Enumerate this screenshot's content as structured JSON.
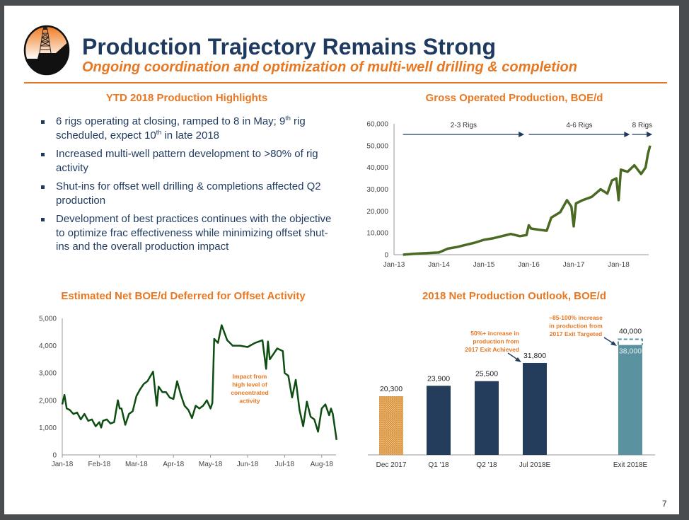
{
  "header": {
    "title": "Production Trajectory Remains Strong",
    "subtitle": "Ongoing coordination and optimization of multi-well drilling & completion",
    "logo_icon": "oil-derrick-logo-icon"
  },
  "colors": {
    "navy": "#1f3a5f",
    "orange": "#e87722",
    "green_line": "#4a6a23",
    "dark_green_line": "#0d4d12",
    "bar_navy": "#243d5c",
    "bar_teal": "#5a939f",
    "bar_hatch": "#d78a2a"
  },
  "highlights": {
    "title": "YTD 2018 Production Highlights",
    "items": [
      {
        "parts": [
          "6 rigs operating at closing, ramped to 8 in May; 9",
          "th",
          " rig scheduled, expect 10",
          "th",
          " in late 2018"
        ]
      },
      {
        "text": "Increased multi-well pattern development to >80% of rig activity"
      },
      {
        "text": "Shut-ins for offset well drilling & completions affected Q2 production"
      },
      {
        "text": "Development of best practices continues with the objective to optimize frac effectiveness while minimizing offset shut-ins and the overall production impact"
      }
    ]
  },
  "page_number": "7",
  "chart_data": [
    {
      "id": "gross",
      "type": "line",
      "title": "Gross Operated Production, BOE/d",
      "xlabel": "",
      "ylabel": "",
      "ylim": [
        0,
        60000
      ],
      "yticks": [
        "0",
        "10,000",
        "20,000",
        "30,000",
        "40,000",
        "50,000",
        "60,000"
      ],
      "ytick_values": [
        0,
        10000,
        20000,
        30000,
        40000,
        50000,
        60000
      ],
      "xticks": [
        "Jan-13",
        "Jan-14",
        "Jan-15",
        "Jan-16",
        "Jan-17",
        "Jan-18"
      ],
      "xlim_years": [
        2013.0,
        2018.75
      ],
      "grid": false,
      "annotations": [
        {
          "text": "2-3 Rigs",
          "from": 2013.2,
          "to": 2015.9
        },
        {
          "text": "4-6 Rigs",
          "from": 2016.0,
          "to": 2018.25
        },
        {
          "text": "8 Rigs",
          "from": 2018.3,
          "to": 2018.75
        }
      ],
      "x": [
        2013.2,
        2013.5,
        2013.8,
        2014.0,
        2014.2,
        2014.4,
        2014.6,
        2014.8,
        2015.0,
        2015.2,
        2015.4,
        2015.6,
        2015.8,
        2015.95,
        2016.0,
        2016.05,
        2016.2,
        2016.4,
        2016.5,
        2016.7,
        2016.85,
        2016.95,
        2017.0,
        2017.05,
        2017.2,
        2017.4,
        2017.6,
        2017.75,
        2017.85,
        2017.95,
        2018.0,
        2018.05,
        2018.2,
        2018.35,
        2018.5,
        2018.6,
        2018.65,
        2018.7
      ],
      "values": [
        0,
        500,
        800,
        1000,
        2800,
        3500,
        4500,
        5500,
        6800,
        7500,
        8500,
        9500,
        8500,
        9000,
        13500,
        12000,
        11500,
        11000,
        17000,
        19500,
        25000,
        22000,
        13000,
        23500,
        25000,
        26500,
        30000,
        28000,
        34000,
        35000,
        25000,
        39000,
        38000,
        41000,
        37000,
        40000,
        46000,
        50000
      ]
    },
    {
      "id": "deferred",
      "type": "line",
      "title": "Estimated Net BOE/d Deferred for Offset Activity",
      "xlabel": "",
      "ylabel": "",
      "ylim": [
        0,
        5000
      ],
      "yticks": [
        "0",
        "1,000",
        "2,000",
        "3,000",
        "4,000",
        "5,000"
      ],
      "ytick_values": [
        0,
        1000,
        2000,
        3000,
        4000,
        5000
      ],
      "xticks": [
        "Jan-18",
        "Feb-18",
        "Mar-18",
        "Apr-18",
        "May-18",
        "Jun-18",
        "Jul-18",
        "Aug-18"
      ],
      "xlim_months": [
        0,
        7.4
      ],
      "grid": false,
      "annotation": "Impact from high level of concentrated activity",
      "x": [
        0.0,
        0.06,
        0.12,
        0.2,
        0.3,
        0.4,
        0.5,
        0.6,
        0.7,
        0.8,
        0.9,
        1.0,
        1.05,
        1.1,
        1.2,
        1.3,
        1.4,
        1.5,
        1.55,
        1.6,
        1.7,
        1.8,
        1.9,
        2.0,
        2.1,
        2.2,
        2.3,
        2.45,
        2.55,
        2.6,
        2.7,
        2.8,
        2.9,
        3.0,
        3.1,
        3.2,
        3.3,
        3.4,
        3.5,
        3.6,
        3.7,
        3.8,
        3.9,
        4.0,
        4.05,
        4.1,
        4.2,
        4.3,
        4.45,
        4.6,
        4.8,
        5.0,
        5.2,
        5.4,
        5.5,
        5.55,
        5.6,
        5.7,
        5.8,
        5.95,
        6.0,
        6.1,
        6.2,
        6.3,
        6.4,
        6.5,
        6.6,
        6.7,
        6.8,
        6.9,
        7.0,
        7.1,
        7.2,
        7.25,
        7.3,
        7.4
      ],
      "values": [
        1850,
        2200,
        1700,
        1650,
        1500,
        1550,
        1300,
        1500,
        1250,
        1300,
        1050,
        1200,
        1000,
        1250,
        1300,
        1150,
        1200,
        2000,
        1700,
        1700,
        1100,
        1500,
        1600,
        2150,
        2400,
        2600,
        2700,
        3050,
        1800,
        2500,
        2300,
        2300,
        2100,
        2050,
        2700,
        2200,
        1800,
        1650,
        1350,
        1800,
        1700,
        1800,
        2000,
        1700,
        1900,
        4250,
        4100,
        4750,
        4200,
        4000,
        4000,
        3950,
        4100,
        4200,
        3150,
        4150,
        3500,
        3700,
        3900,
        3800,
        3000,
        2900,
        2100,
        2750,
        1650,
        1050,
        1950,
        1400,
        1300,
        850,
        1700,
        1850,
        1450,
        1700,
        1500,
        550
      ]
    },
    {
      "id": "outlook",
      "type": "bar",
      "title": "2018 Net Production Outlook, BOE/d",
      "xlabel": "",
      "ylabel": "",
      "ylim": [
        0,
        46000
      ],
      "categories": [
        "Dec 2017",
        "Q1 '18",
        "Q2 '18",
        "Jul 2018E",
        "",
        "Exit 2018E"
      ],
      "values": [
        20300,
        23900,
        25500,
        31800,
        null,
        38000
      ],
      "labels": [
        "20,300",
        "23,900",
        "25,500",
        "31,800",
        "",
        "38,000"
      ],
      "styles": [
        "hatched",
        "navy",
        "navy",
        "navy",
        "none",
        "teal"
      ],
      "target_range_top": 40000,
      "target_range_label": "40,000",
      "annotations": [
        {
          "text_lines": [
            "50%+ increase in",
            "production from",
            "2017 Exit Achieved"
          ],
          "points_to": "Jul 2018E"
        },
        {
          "text_lines": [
            "~85-100% increase",
            "in production from",
            "2017 Exit Targeted"
          ],
          "points_to": "Exit 2018E"
        }
      ]
    }
  ]
}
